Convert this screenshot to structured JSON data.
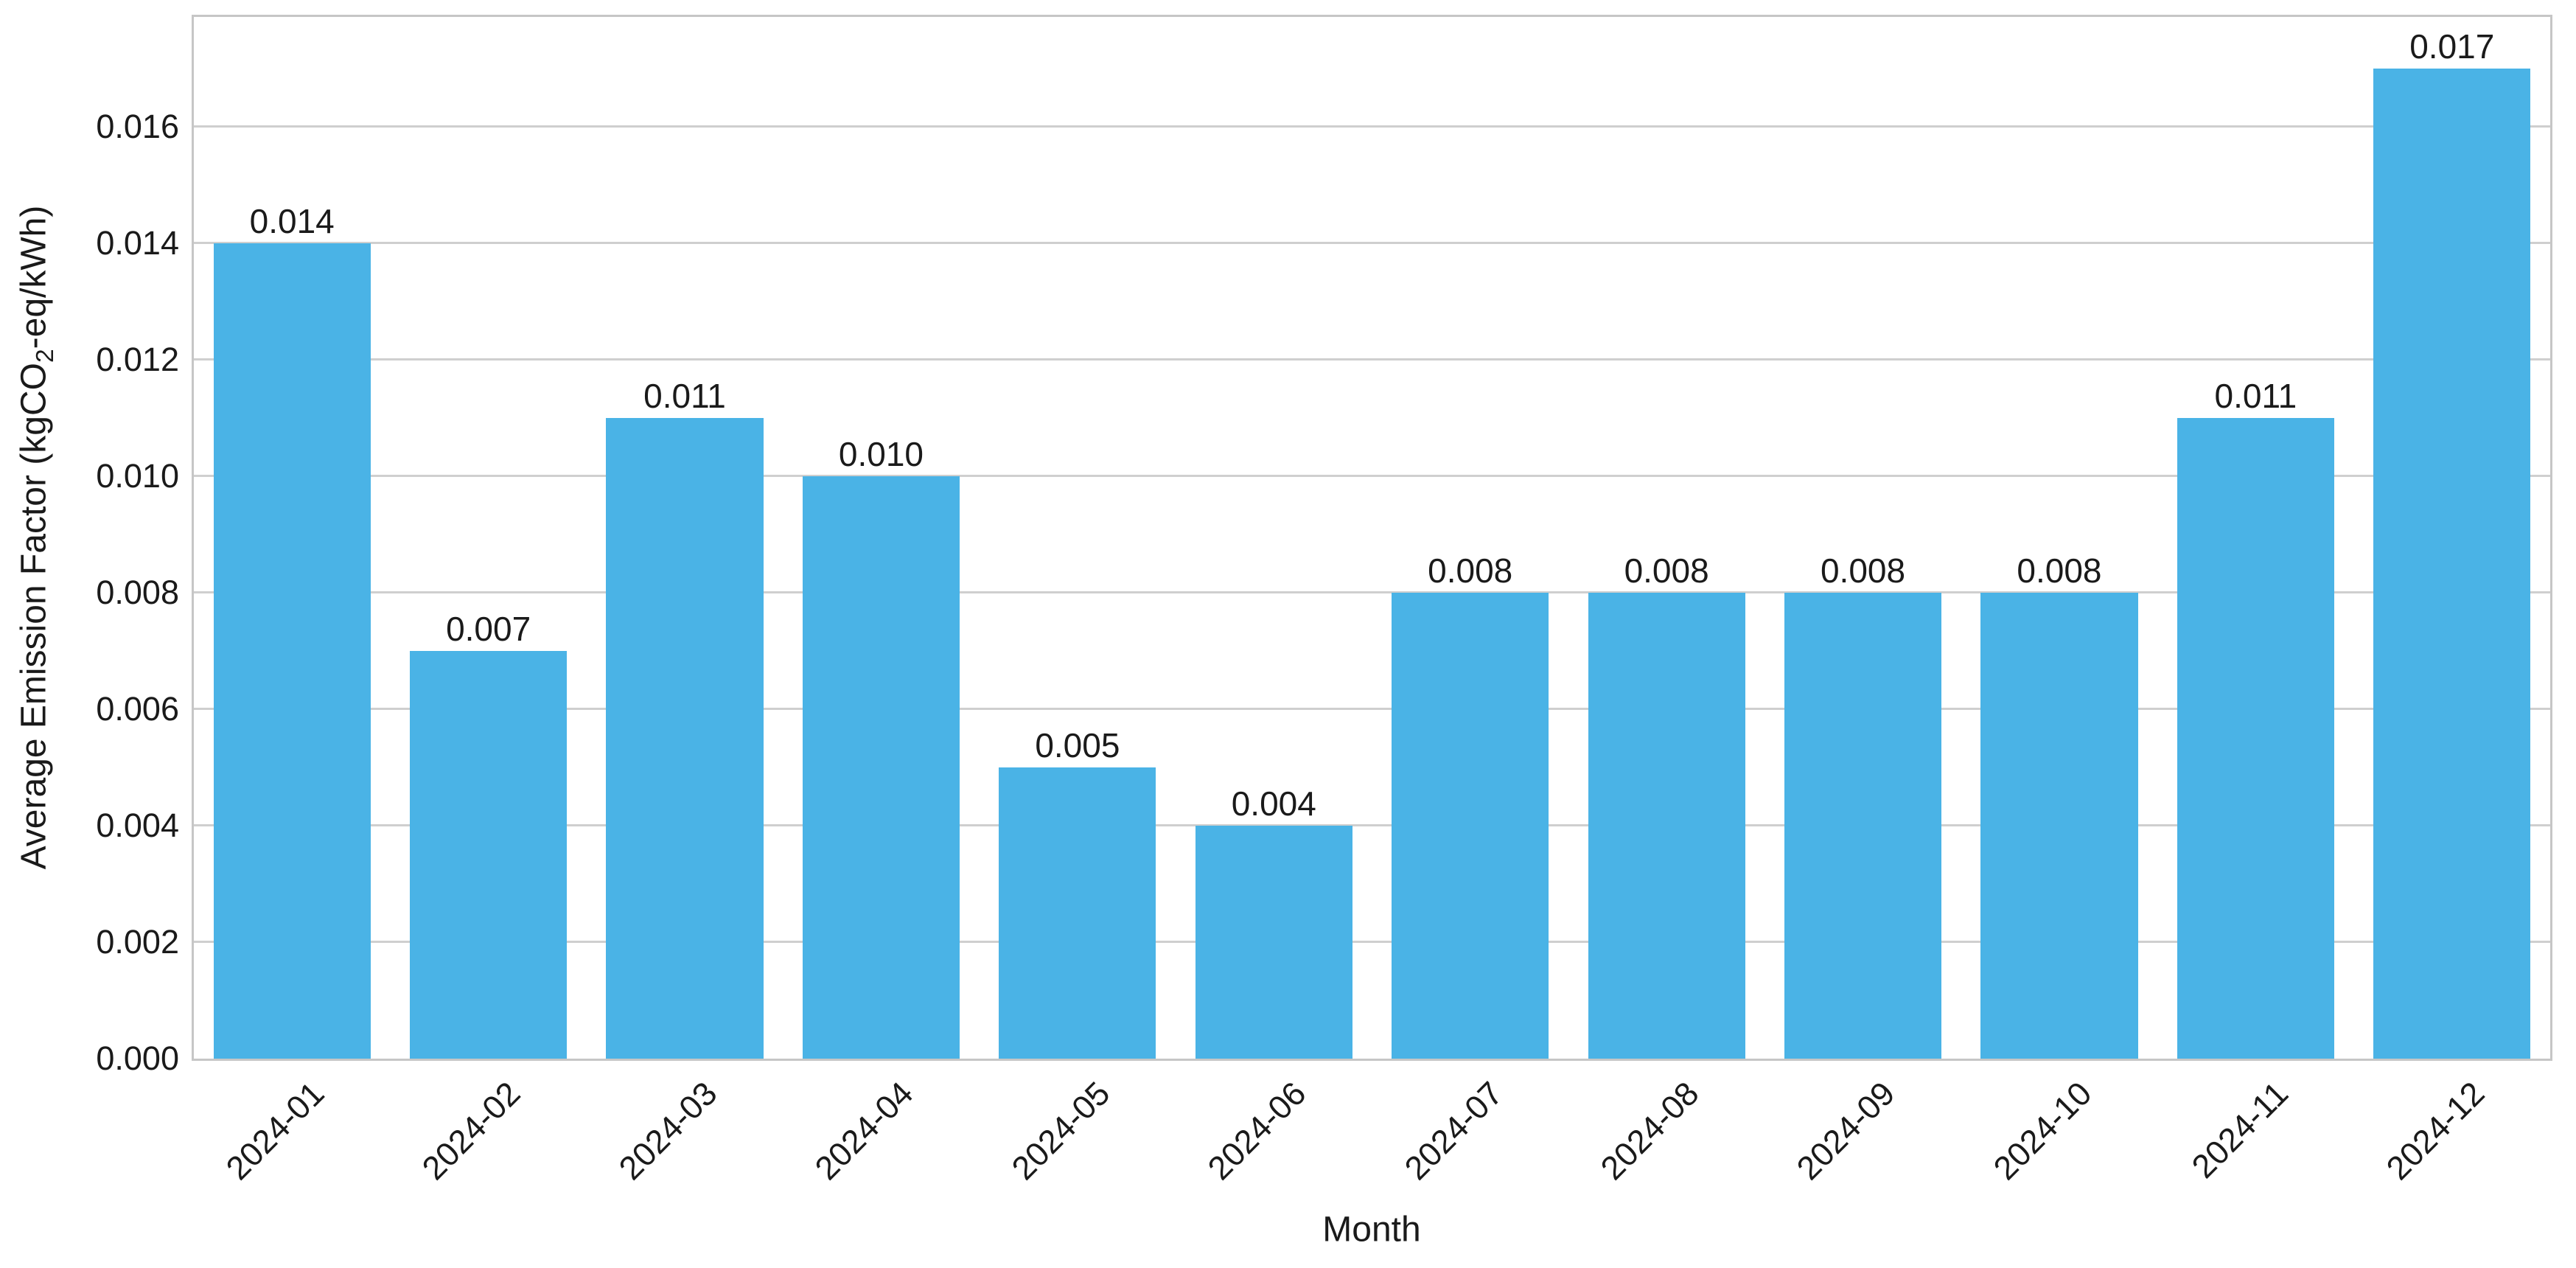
{
  "chart_data": {
    "type": "bar",
    "title": "",
    "xlabel": "Month",
    "ylabel": "Average Emission Factor (kgCO2-eq/kWh)",
    "ylabel_parts": {
      "pre": "Average Emission Factor (kgCO",
      "sub": "2",
      "post": "-eq/kWh)"
    },
    "categories": [
      "2024-01",
      "2024-02",
      "2024-03",
      "2024-04",
      "2024-05",
      "2024-06",
      "2024-07",
      "2024-08",
      "2024-09",
      "2024-10",
      "2024-11",
      "2024-12"
    ],
    "values": [
      0.014,
      0.007,
      0.011,
      0.01,
      0.005,
      0.004,
      0.008,
      0.008,
      0.008,
      0.008,
      0.011,
      0.017
    ],
    "bar_labels": [
      "0.014",
      "0.007",
      "0.011",
      "0.010",
      "0.005",
      "0.004",
      "0.008",
      "0.008",
      "0.008",
      "0.008",
      "0.011",
      "0.017"
    ],
    "yticks": [
      0.0,
      0.002,
      0.004,
      0.006,
      0.008,
      0.01,
      0.012,
      0.014,
      0.016
    ],
    "ytick_labels": [
      "0.000",
      "0.002",
      "0.004",
      "0.006",
      "0.008",
      "0.010",
      "0.012",
      "0.014",
      "0.016"
    ],
    "ylim": [
      0,
      0.01788
    ],
    "grid": "horizontal-only",
    "legend": "none",
    "colors": {
      "bar": "#4ab3e6",
      "grid": "#cfcfcf",
      "spine": "#c6c6c6",
      "text": "#1a1a1a",
      "background": "#ffffff"
    }
  }
}
